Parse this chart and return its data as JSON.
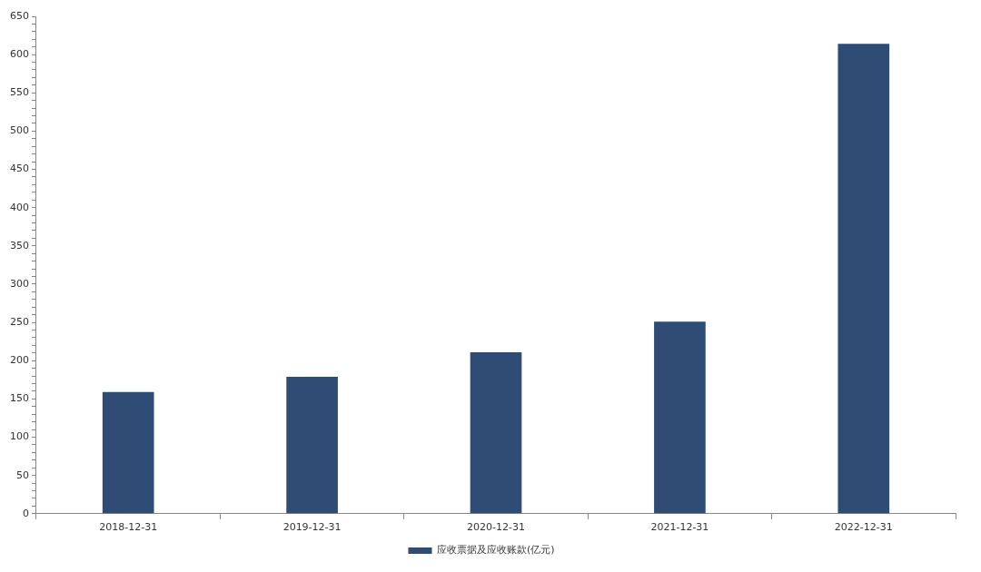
{
  "chart_data": {
    "type": "bar",
    "categories": [
      "2018-12-31",
      "2019-12-31",
      "2020-12-31",
      "2021-12-31",
      "2022-12-31"
    ],
    "series": [
      {
        "name": "应收票据及应收账款(亿元)",
        "color": "#2e4c74",
        "values": [
          159,
          179,
          211,
          251,
          614
        ]
      }
    ],
    "ylim": [
      0,
      650
    ],
    "yticks": [
      0,
      {
        "value": 10,
        "label": null
      },
      {
        "value": 20,
        "label": null
      },
      {
        "value": 30,
        "label": null
      },
      {
        "value": 40,
        "label": null
      },
      50,
      {
        "value": 60,
        "label": null
      },
      {
        "value": 70,
        "label": null
      },
      {
        "value": 80,
        "label": null
      },
      {
        "value": 90,
        "label": null
      },
      100,
      {
        "value": 110,
        "label": null
      },
      {
        "value": 120,
        "label": null
      },
      {
        "value": 130,
        "label": null
      },
      {
        "value": 140,
        "label": null
      },
      150,
      {
        "value": 160,
        "label": null
      },
      {
        "value": 170,
        "label": null
      },
      {
        "value": 180,
        "label": null
      },
      {
        "value": 190,
        "label": null
      },
      200,
      {
        "value": 210,
        "label": null
      },
      {
        "value": 220,
        "label": null
      },
      {
        "value": 230,
        "label": null
      },
      {
        "value": 240,
        "label": null
      },
      250,
      {
        "value": 260,
        "label": null
      },
      {
        "value": 270,
        "label": null
      },
      {
        "value": 280,
        "label": null
      },
      {
        "value": 290,
        "label": null
      },
      300,
      {
        "value": 310,
        "label": null
      },
      {
        "value": 320,
        "label": null
      },
      {
        "value": 330,
        "label": null
      },
      {
        "value": 340,
        "label": null
      },
      350,
      {
        "value": 360,
        "label": null
      },
      {
        "value": 370,
        "label": null
      },
      {
        "value": 380,
        "label": null
      },
      {
        "value": 390,
        "label": null
      },
      400,
      {
        "value": 410,
        "label": null
      },
      {
        "value": 420,
        "label": null
      },
      {
        "value": 430,
        "label": null
      },
      {
        "value": 440,
        "label": null
      },
      450,
      {
        "value": 460,
        "label": null
      },
      {
        "value": 470,
        "label": null
      },
      {
        "value": 480,
        "label": null
      },
      {
        "value": 490,
        "label": null
      },
      500,
      {
        "value": 510,
        "label": null
      },
      {
        "value": 520,
        "label": null
      },
      {
        "value": 530,
        "label": null
      },
      {
        "value": 540,
        "label": null
      },
      550,
      {
        "value": 560,
        "label": null
      },
      {
        "value": 570,
        "label": null
      },
      {
        "value": 580,
        "label": null
      },
      {
        "value": 590,
        "label": null
      },
      600,
      {
        "value": 610,
        "label": null
      },
      {
        "value": 620,
        "label": null
      },
      {
        "value": 630,
        "label": null
      },
      {
        "value": 640,
        "label": null
      },
      650
    ],
    "grid": false,
    "legend": "bottom"
  }
}
